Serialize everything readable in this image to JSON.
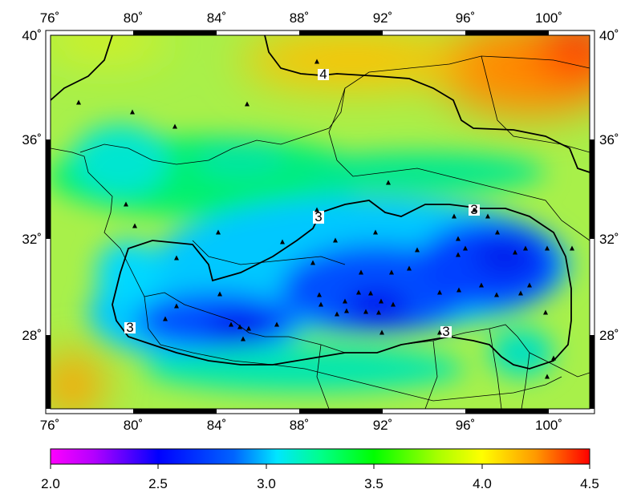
{
  "map": {
    "lon_ticks": [
      "76˚",
      "80˚",
      "84˚",
      "88˚",
      "92˚",
      "96˚",
      "100˚"
    ],
    "lat_ticks": [
      "40˚",
      "36˚",
      "32˚",
      "28˚"
    ],
    "contour_labels": [
      "4",
      "3",
      "3",
      "3",
      "3"
    ],
    "extent": {
      "lon": [
        76,
        102
      ],
      "lat": [
        25,
        40
      ]
    }
  },
  "colorbar": {
    "labels": [
      "2.0",
      "2.5",
      "3.0",
      "3.5",
      "4.0",
      "4.5"
    ],
    "range": [
      2.0,
      4.5
    ],
    "colors": [
      "#ff00ff",
      "#0000ff",
      "#00ffff",
      "#00ff00",
      "#ffff00",
      "#ff0000"
    ]
  }
}
